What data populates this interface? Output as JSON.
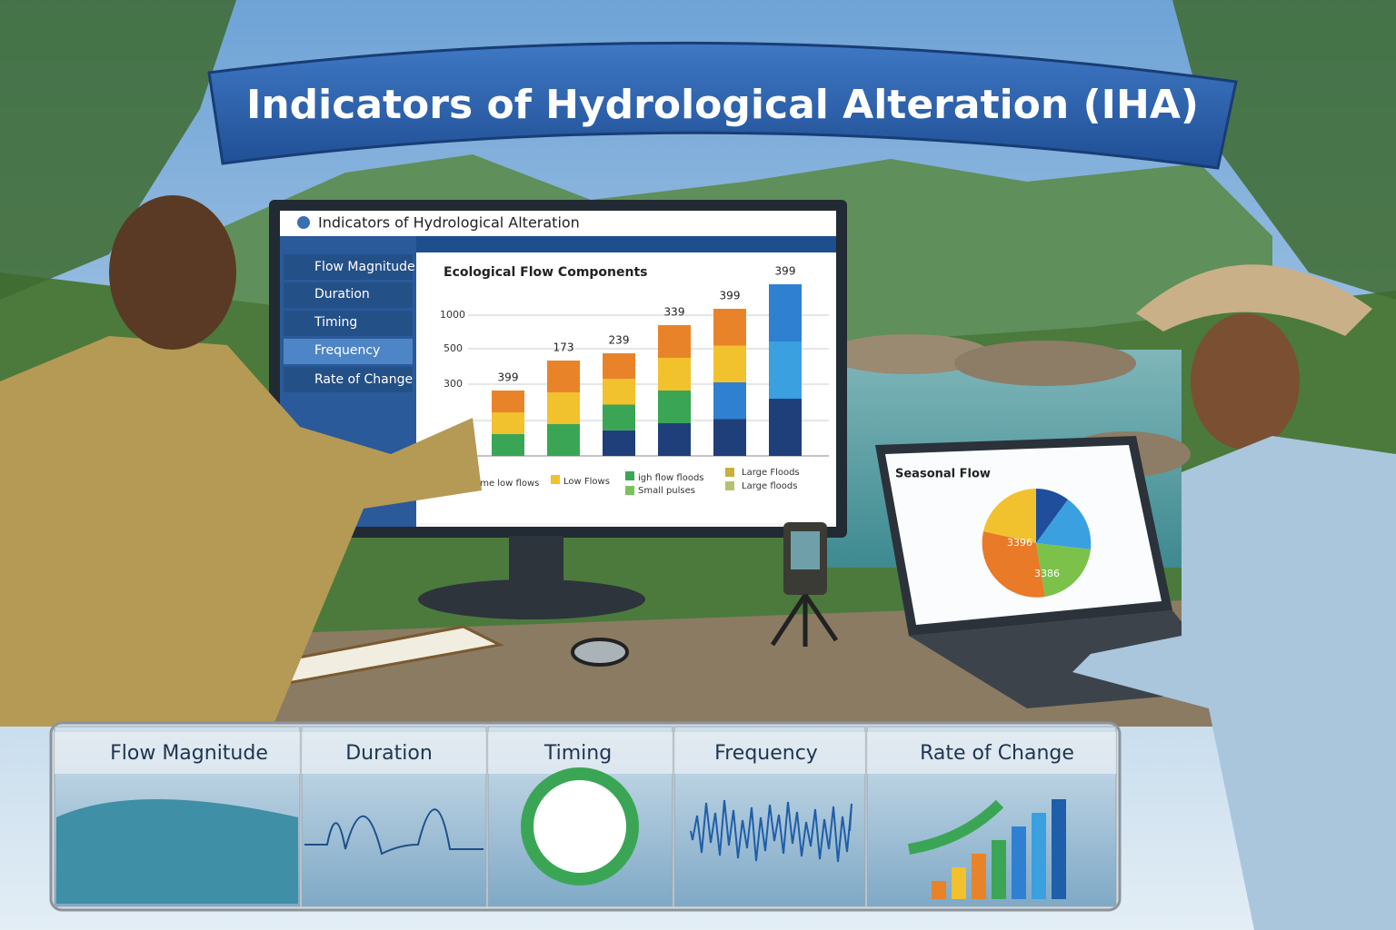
{
  "banner": {
    "title": "Indicators of Hydrological Alteration (IHA)"
  },
  "monitor": {
    "title": "Indicators of Hydrological Alteration",
    "menu": [
      "Flow Magnitude",
      "Duration",
      "Timing",
      "Frequency",
      "Rate of Change"
    ],
    "chart": {
      "title": "Ecological Flow Components",
      "axis_labels": [
        "1000",
        "500",
        "300"
      ],
      "bar_labels": [
        "399",
        "173",
        "239",
        "339",
        "399",
        "399"
      ],
      "legend": [
        "Extreme low flows",
        "Low Flows",
        "igh flow floods",
        "Large Floods",
        "Small pulses",
        "Large floods"
      ]
    }
  },
  "laptop": {
    "title": "Seasonal Flow",
    "pie_labels": [
      "3396",
      "3386"
    ]
  },
  "panels": [
    "Flow Magnitude",
    "Duration",
    "Timing",
    "Frequency",
    "Rate of Change"
  ]
}
